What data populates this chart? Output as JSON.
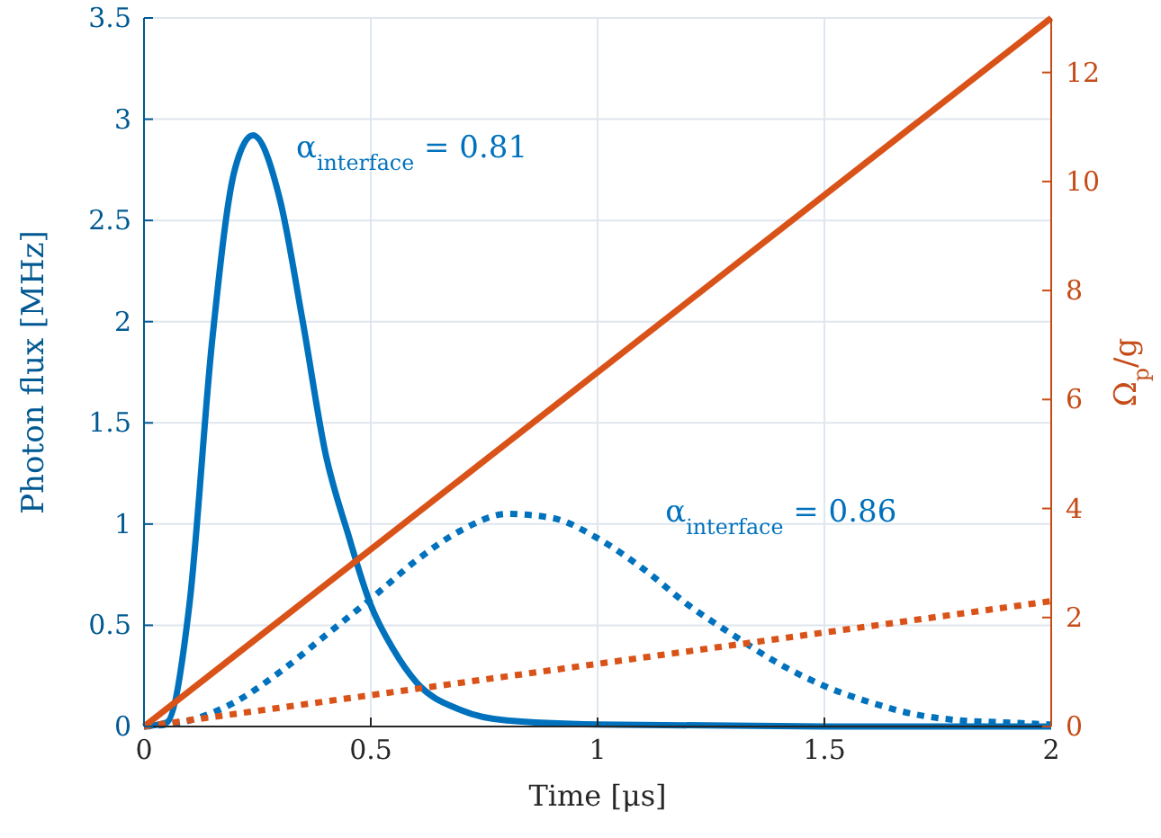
{
  "chart_data": {
    "type": "line",
    "xlabel": "Time [μs]",
    "ylabel": "Photon flux [MHz]",
    "y2label": "Ω$_{p}$/g",
    "xlim": [
      0,
      2
    ],
    "xticks": [
      0,
      0.5,
      1,
      1.5,
      2
    ],
    "ylim": [
      0,
      3.5
    ],
    "yticks": [
      0,
      0.5,
      1,
      1.5,
      2,
      2.5,
      3,
      3.5
    ],
    "y2lim": [
      0,
      13
    ],
    "y2ticks": [
      0,
      2,
      4,
      6,
      8,
      10,
      12
    ],
    "grid": true,
    "annotations": [
      "α$_{interface}$ = 0.81",
      "α$_{interface}$ = 0.86"
    ],
    "series": [
      {
        "color": "#0072bd",
        "line_style": "solid",
        "x": [
          0,
          0.05,
          0.1,
          0.15,
          0.2,
          0.24,
          0.3,
          0.35,
          0.4,
          0.45,
          0.5,
          0.55,
          0.6,
          0.7,
          0.8,
          1.0,
          1.5,
          2
        ],
        "values": [
          0,
          0.02,
          0.6,
          1.9,
          2.75,
          2.92,
          2.6,
          2.0,
          1.35,
          0.95,
          0.6,
          0.38,
          0.22,
          0.08,
          0.03,
          0.01,
          0,
          0
        ]
      },
      {
        "color": "#0072bd",
        "line_style": "dotted",
        "x": [
          0,
          0.1,
          0.2,
          0.3,
          0.4,
          0.5,
          0.6,
          0.7,
          0.8,
          0.9,
          1.0,
          1.1,
          1.2,
          1.3,
          1.4,
          1.5,
          1.6,
          1.7,
          1.8,
          1.9,
          2.0
        ],
        "values": [
          0,
          0.03,
          0.12,
          0.27,
          0.45,
          0.63,
          0.82,
          0.97,
          1.05,
          1.03,
          0.93,
          0.78,
          0.6,
          0.45,
          0.31,
          0.2,
          0.12,
          0.06,
          0.03,
          0.02,
          0.01
        ]
      },
      {
        "color": "#d95319",
        "line_style": "solid",
        "axis": "y2",
        "x": [
          0,
          2
        ],
        "values": [
          0,
          13
        ]
      },
      {
        "color": "#d95319",
        "line_style": "dotted",
        "axis": "y2",
        "x": [
          0,
          2
        ],
        "values": [
          0,
          2.3
        ]
      }
    ]
  }
}
